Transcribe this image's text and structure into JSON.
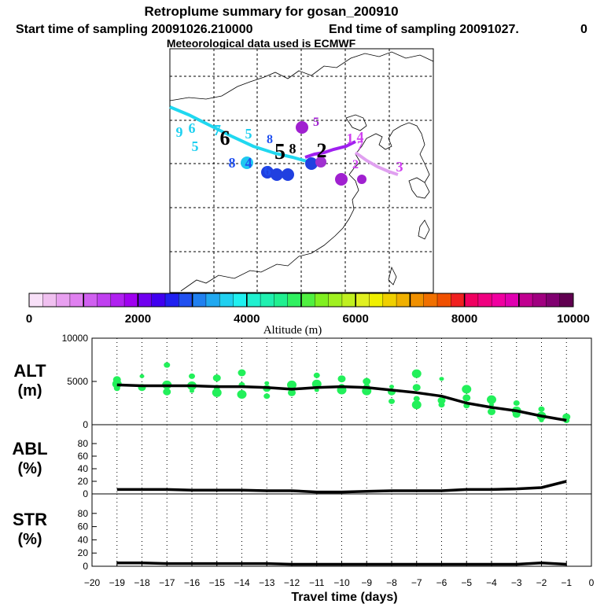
{
  "title": "Retroplume summary for gosan_200910",
  "subtitle_start": "Start time of sampling 20091026.210000",
  "subtitle_end": "End time of sampling 20091027.",
  "subtitle_end_value": "0",
  "met_line": "Meteorological data used is ECMWF",
  "colorbar": {
    "label": "Altitude  (m)",
    "ticks": [
      "0",
      "2000",
      "4000",
      "6000",
      "8000",
      "10000"
    ],
    "min": 0,
    "max": 10000,
    "colors": [
      "#f8e0f8",
      "#f0c0f0",
      "#e8a0f0",
      "#e080f0",
      "#d060f0",
      "#c040f0",
      "#b020f0",
      "#a000f0",
      "#7000f0",
      "#4000f0",
      "#2020f0",
      "#2050f0",
      "#2080f0",
      "#20a8f0",
      "#20d0f0",
      "#20f0f0",
      "#20f0d0",
      "#20f0b0",
      "#20f090",
      "#30f060",
      "#50f040",
      "#80f020",
      "#a0f020",
      "#c0f020",
      "#e0f020",
      "#f0f000",
      "#f0d000",
      "#f0b000",
      "#f09000",
      "#f07000",
      "#f05000",
      "#f02020",
      "#f00060",
      "#f00080",
      "#f000a0",
      "#e000b0",
      "#c00090",
      "#a00080",
      "#800070",
      "#600050"
    ]
  },
  "map_labels": [
    {
      "t": "9",
      "c": "#20d0f0"
    },
    {
      "t": "6",
      "c": "#20d0f0"
    },
    {
      "t": "5",
      "c": "#20d0f0"
    },
    {
      "t": "7",
      "c": "#20d0f0"
    },
    {
      "t": "6",
      "c": "#000"
    },
    {
      "t": "5",
      "c": "#20d0f0"
    },
    {
      "t": "8",
      "c": "#2050f0"
    },
    {
      "t": "2",
      "c": "#a020d0"
    },
    {
      "t": "5",
      "c": "#a020d0"
    },
    {
      "t": "5",
      "c": "#000"
    },
    {
      "t": "8",
      "c": "#000"
    },
    {
      "t": "2",
      "c": "#000"
    },
    {
      "t": "8",
      "c": "#2050f0"
    },
    {
      "t": "4",
      "c": "#2050f0"
    },
    {
      "t": "6",
      "c": "#2050f0"
    },
    {
      "t": "1",
      "c": "#d040f0"
    },
    {
      "t": "4",
      "c": "#d040f0"
    },
    {
      "t": "7",
      "c": "#d040f0"
    },
    {
      "t": "2",
      "c": "#d040f0"
    },
    {
      "t": "3",
      "c": "#d040f0"
    },
    {
      "t": "3",
      "c": "#a020d0"
    },
    {
      "t": "4",
      "c": "#a020d0"
    }
  ],
  "chart_data": [
    {
      "type": "line",
      "panel": "ALT",
      "ylabel_line1": "ALT",
      "ylabel_line2": "(m)",
      "ylim": [
        0,
        10000
      ],
      "yticks": [
        "10000",
        "5000",
        "0"
      ],
      "x": [
        -19,
        -18,
        -17,
        -16,
        -15,
        -14,
        -13,
        -12,
        -11,
        -10,
        -9,
        -8,
        -7,
        -6,
        -5,
        -4,
        -3,
        -2,
        -1
      ],
      "median": [
        4600,
        4500,
        4500,
        4500,
        4400,
        4400,
        4300,
        4100,
        4300,
        4400,
        4300,
        4000,
        3700,
        3300,
        2500,
        2000,
        1600,
        1000,
        500
      ],
      "scatter": [
        [
          -19,
          5200
        ],
        [
          -19,
          4200
        ],
        [
          -19,
          4700
        ],
        [
          -18,
          5600
        ],
        [
          -18,
          4300
        ],
        [
          -17,
          6900
        ],
        [
          -17,
          4600
        ],
        [
          -17,
          3800
        ],
        [
          -16,
          5600
        ],
        [
          -16,
          4500
        ],
        [
          -16,
          3900
        ],
        [
          -15,
          5400
        ],
        [
          -15,
          4300
        ],
        [
          -15,
          3700
        ],
        [
          -14,
          6000
        ],
        [
          -14,
          4600
        ],
        [
          -14,
          3500
        ],
        [
          -13,
          4800
        ],
        [
          -13,
          4200
        ],
        [
          -13,
          3300
        ],
        [
          -12,
          4600
        ],
        [
          -12,
          3700
        ],
        [
          -11,
          5700
        ],
        [
          -11,
          4700
        ],
        [
          -11,
          4000
        ],
        [
          -10,
          5300
        ],
        [
          -10,
          4400
        ],
        [
          -10,
          4000
        ],
        [
          -9,
          5000
        ],
        [
          -9,
          4400
        ],
        [
          -9,
          3900
        ],
        [
          -8,
          4400
        ],
        [
          -8,
          3800
        ],
        [
          -8,
          2700
        ],
        [
          -7,
          5900
        ],
        [
          -7,
          4300
        ],
        [
          -7,
          3000
        ],
        [
          -7,
          2300
        ],
        [
          -6,
          5300
        ],
        [
          -6,
          2800
        ],
        [
          -6,
          2300
        ],
        [
          -5,
          4100
        ],
        [
          -5,
          3100
        ],
        [
          -5,
          2200
        ],
        [
          -4,
          2900
        ],
        [
          -4,
          2300
        ],
        [
          -4,
          1500
        ],
        [
          -3,
          2500
        ],
        [
          -3,
          1600
        ],
        [
          -3,
          1200
        ],
        [
          -2,
          1800
        ],
        [
          -2,
          1000
        ],
        [
          -2,
          500
        ],
        [
          -1,
          900
        ],
        [
          -1,
          500
        ]
      ]
    },
    {
      "type": "line",
      "panel": "ABL",
      "ylabel_line1": "ABL",
      "ylabel_line2": "(%)",
      "ylim": [
        0,
        100
      ],
      "yticks": [
        "80",
        "60",
        "40",
        "20",
        "0"
      ],
      "x": [
        -19,
        -18,
        -17,
        -16,
        -15,
        -14,
        -13,
        -12,
        -11,
        -10,
        -9,
        -8,
        -7,
        -6,
        -5,
        -4,
        -3,
        -2,
        -1
      ],
      "values": [
        7,
        7,
        7,
        6,
        6,
        6,
        5,
        5,
        3,
        3,
        4,
        5,
        5,
        5,
        7,
        7,
        8,
        10,
        20
      ]
    },
    {
      "type": "line",
      "panel": "STR",
      "ylabel_line1": "STR",
      "ylabel_line2": "(%)",
      "ylim": [
        0,
        100
      ],
      "yticks": [
        "80",
        "60",
        "40",
        "20",
        "0"
      ],
      "x": [
        -19,
        -18,
        -17,
        -16,
        -15,
        -14,
        -13,
        -12,
        -11,
        -10,
        -9,
        -8,
        -7,
        -6,
        -5,
        -4,
        -3,
        -2,
        -1
      ],
      "values": [
        5,
        5,
        4,
        4,
        4,
        4,
        4,
        3,
        3,
        3,
        3,
        3,
        3,
        3,
        3,
        3,
        3,
        5,
        3
      ]
    }
  ],
  "xaxis": {
    "label": "Travel time (days)",
    "ticks": [
      "−20",
      "−19",
      "−18",
      "−17",
      "−16",
      "−15",
      "−14",
      "−13",
      "−12",
      "−11",
      "−10",
      "−9",
      "−8",
      "−7",
      "−6",
      "−5",
      "−4",
      "−3",
      "−2",
      "−1",
      "0"
    ]
  }
}
